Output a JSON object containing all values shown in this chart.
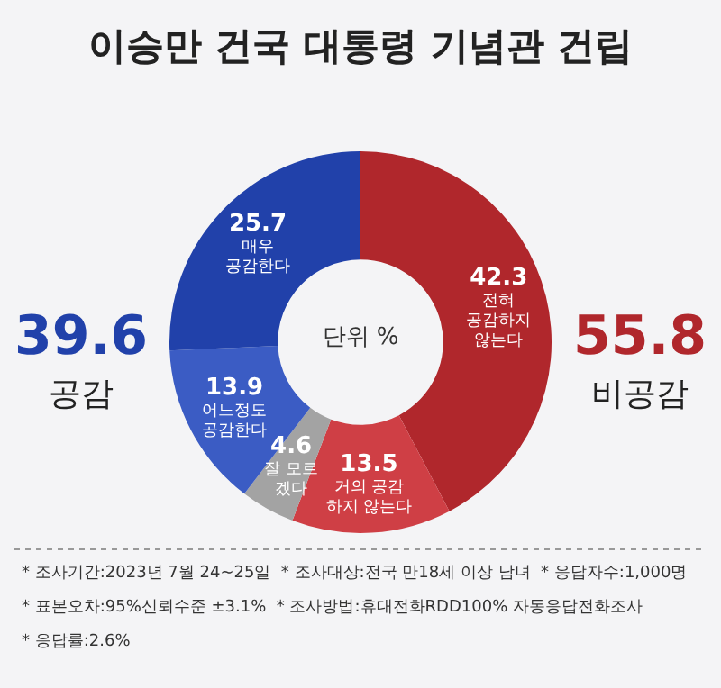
{
  "chart_data": {
    "type": "donut",
    "title": "이승만 건국 대통령 기념관 건립",
    "categories": [
      "전혀\n공감하지\n않는다",
      "거의 공감\n하지 않는다",
      "잘 모르\n겠다",
      "어느정도\n공감한다",
      "매우\n공감한다"
    ],
    "values": [
      42.3,
      13.5,
      4.6,
      13.9,
      25.7
    ],
    "colors": [
      "#b0272c",
      "#cf3f45",
      "#a3a3a3",
      "#3b5cc4",
      "#2141aa"
    ],
    "data_labels": true,
    "legend": false,
    "annotations": [
      "단위 %",
      "39.6",
      "공감",
      "55.8",
      "비공감",
      "* 조사기간:2023년 7월 24~25일  * 조사대상:전국 만18세 이상 남녀  * 응답자수:1,000명",
      "* 표본오차:95%신뢰수준 ±3.1%  * 조사방법:휴대전화RDD100% 자동응답전화조사",
      "* 응답률:2.6%"
    ]
  }
}
